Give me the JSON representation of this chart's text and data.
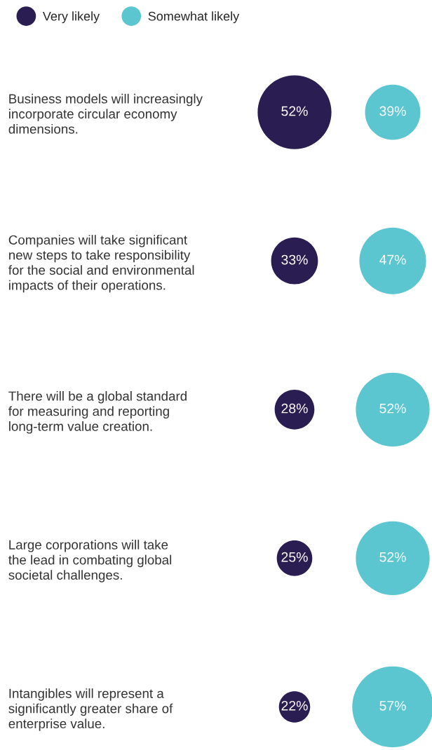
{
  "chart_data": {
    "type": "other",
    "categories": [
      "Business models will increasingly\nincorporate circular economy\ndimensions.",
      "Companies will take significant\nnew steps to take responsibility\nfor the social and environmental\nimpacts of their operations.",
      "There will be a global standard\nfor measuring and reporting\nlong-term value creation.",
      "Large corporations will take\nthe lead in combating global\nsocietal challenges.",
      "Intangibles will represent a\nsignificantly greater share of\nenterprise value."
    ],
    "series": [
      {
        "name": "Very likely",
        "color": "#2a1d52",
        "values": [
          52,
          33,
          28,
          25,
          22
        ],
        "value_labels": [
          "52%",
          "33%",
          "28%",
          "25%",
          "22%"
        ]
      },
      {
        "name": "Somewhat likely",
        "color": "#5bc5d0",
        "values": [
          39,
          47,
          52,
          52,
          57
        ],
        "value_labels": [
          "39%",
          "47%",
          "52%",
          "52%",
          "57%"
        ]
      }
    ],
    "legend": "top left"
  }
}
